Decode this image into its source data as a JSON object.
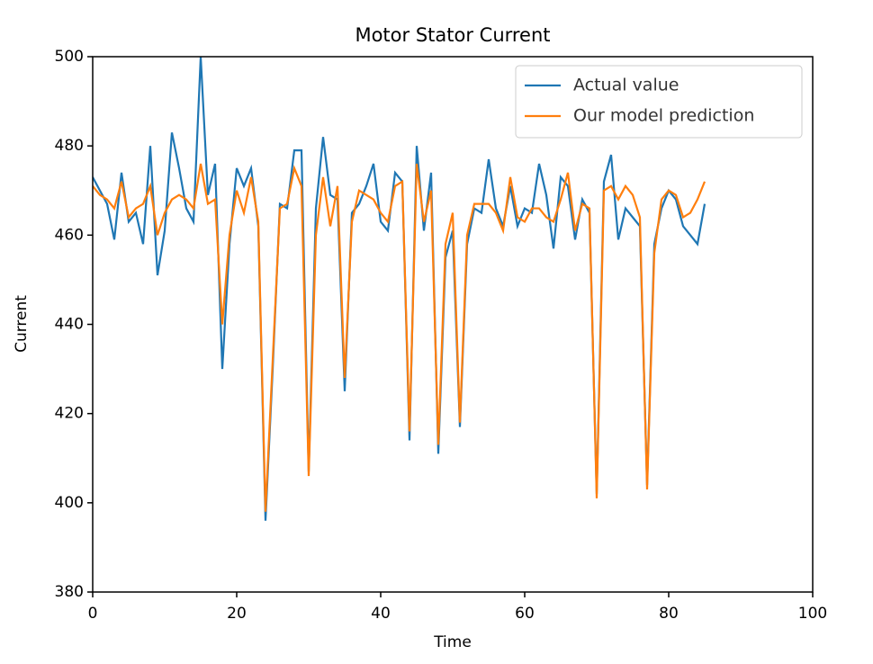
{
  "chart_data": {
    "type": "line",
    "title": "Motor Stator Current",
    "xlabel": "Time",
    "ylabel": "Current",
    "x": [
      0,
      1,
      2,
      3,
      4,
      5,
      6,
      7,
      8,
      9,
      10,
      11,
      12,
      13,
      14,
      15,
      16,
      17,
      18,
      19,
      20,
      21,
      22,
      23,
      24,
      25,
      26,
      27,
      28,
      29,
      30,
      31,
      32,
      33,
      34,
      35,
      36,
      37,
      38,
      39,
      40,
      41,
      42,
      43,
      44,
      45,
      46,
      47,
      48,
      49,
      50,
      51,
      52,
      53,
      54,
      55,
      56,
      57,
      58,
      59,
      60,
      61,
      62,
      63,
      64,
      65,
      66,
      67,
      68,
      69,
      70,
      71,
      72,
      73,
      74,
      75,
      76,
      77,
      78,
      79,
      80,
      81,
      82,
      83,
      84,
      85
    ],
    "series": [
      {
        "name": "Actual value",
        "color": "#1f77b4",
        "values": [
          473,
          470,
          467,
          459,
          474,
          463,
          465,
          458,
          480,
          451,
          461,
          483,
          475,
          466,
          463,
          500,
          469,
          476,
          430,
          458,
          475,
          471,
          475,
          462,
          396,
          430,
          467,
          466,
          479,
          479,
          407,
          466,
          482,
          469,
          468,
          425,
          465,
          467,
          471,
          476,
          463,
          461,
          474,
          472,
          414,
          480,
          461,
          474,
          411,
          455,
          461,
          417,
          458,
          466,
          465,
          477,
          466,
          462,
          471,
          462,
          466,
          465,
          476,
          469,
          457,
          473,
          471,
          459,
          468,
          465,
          402,
          472,
          478,
          459,
          466,
          464,
          462,
          404,
          458,
          466,
          470,
          468,
          462,
          460,
          458,
          467
        ]
      },
      {
        "name": "Our model prediction",
        "color": "#ff7f0e",
        "values": [
          471,
          469,
          468,
          466,
          472,
          464,
          466,
          467,
          471,
          460,
          465,
          468,
          469,
          468,
          466,
          476,
          467,
          468,
          440,
          460,
          470,
          465,
          473,
          463,
          398,
          432,
          466,
          467,
          475,
          471,
          406,
          460,
          473,
          462,
          471,
          428,
          463,
          470,
          469,
          468,
          465,
          463,
          471,
          472,
          416,
          476,
          463,
          470,
          413,
          458,
          465,
          418,
          460,
          467,
          467,
          467,
          465,
          461,
          473,
          464,
          463,
          466,
          466,
          464,
          463,
          468,
          474,
          461,
          467,
          466,
          401,
          470,
          471,
          468,
          471,
          469,
          464,
          403,
          456,
          468,
          470,
          469,
          464,
          465,
          468,
          472
        ]
      }
    ],
    "xlim": [
      0,
      100
    ],
    "xticks": [
      0,
      20,
      40,
      60,
      80,
      100
    ],
    "ylim": [
      380,
      500
    ],
    "yticks": [
      380,
      400,
      420,
      440,
      460,
      480,
      500
    ],
    "legend": "upper right",
    "grid": false
  }
}
